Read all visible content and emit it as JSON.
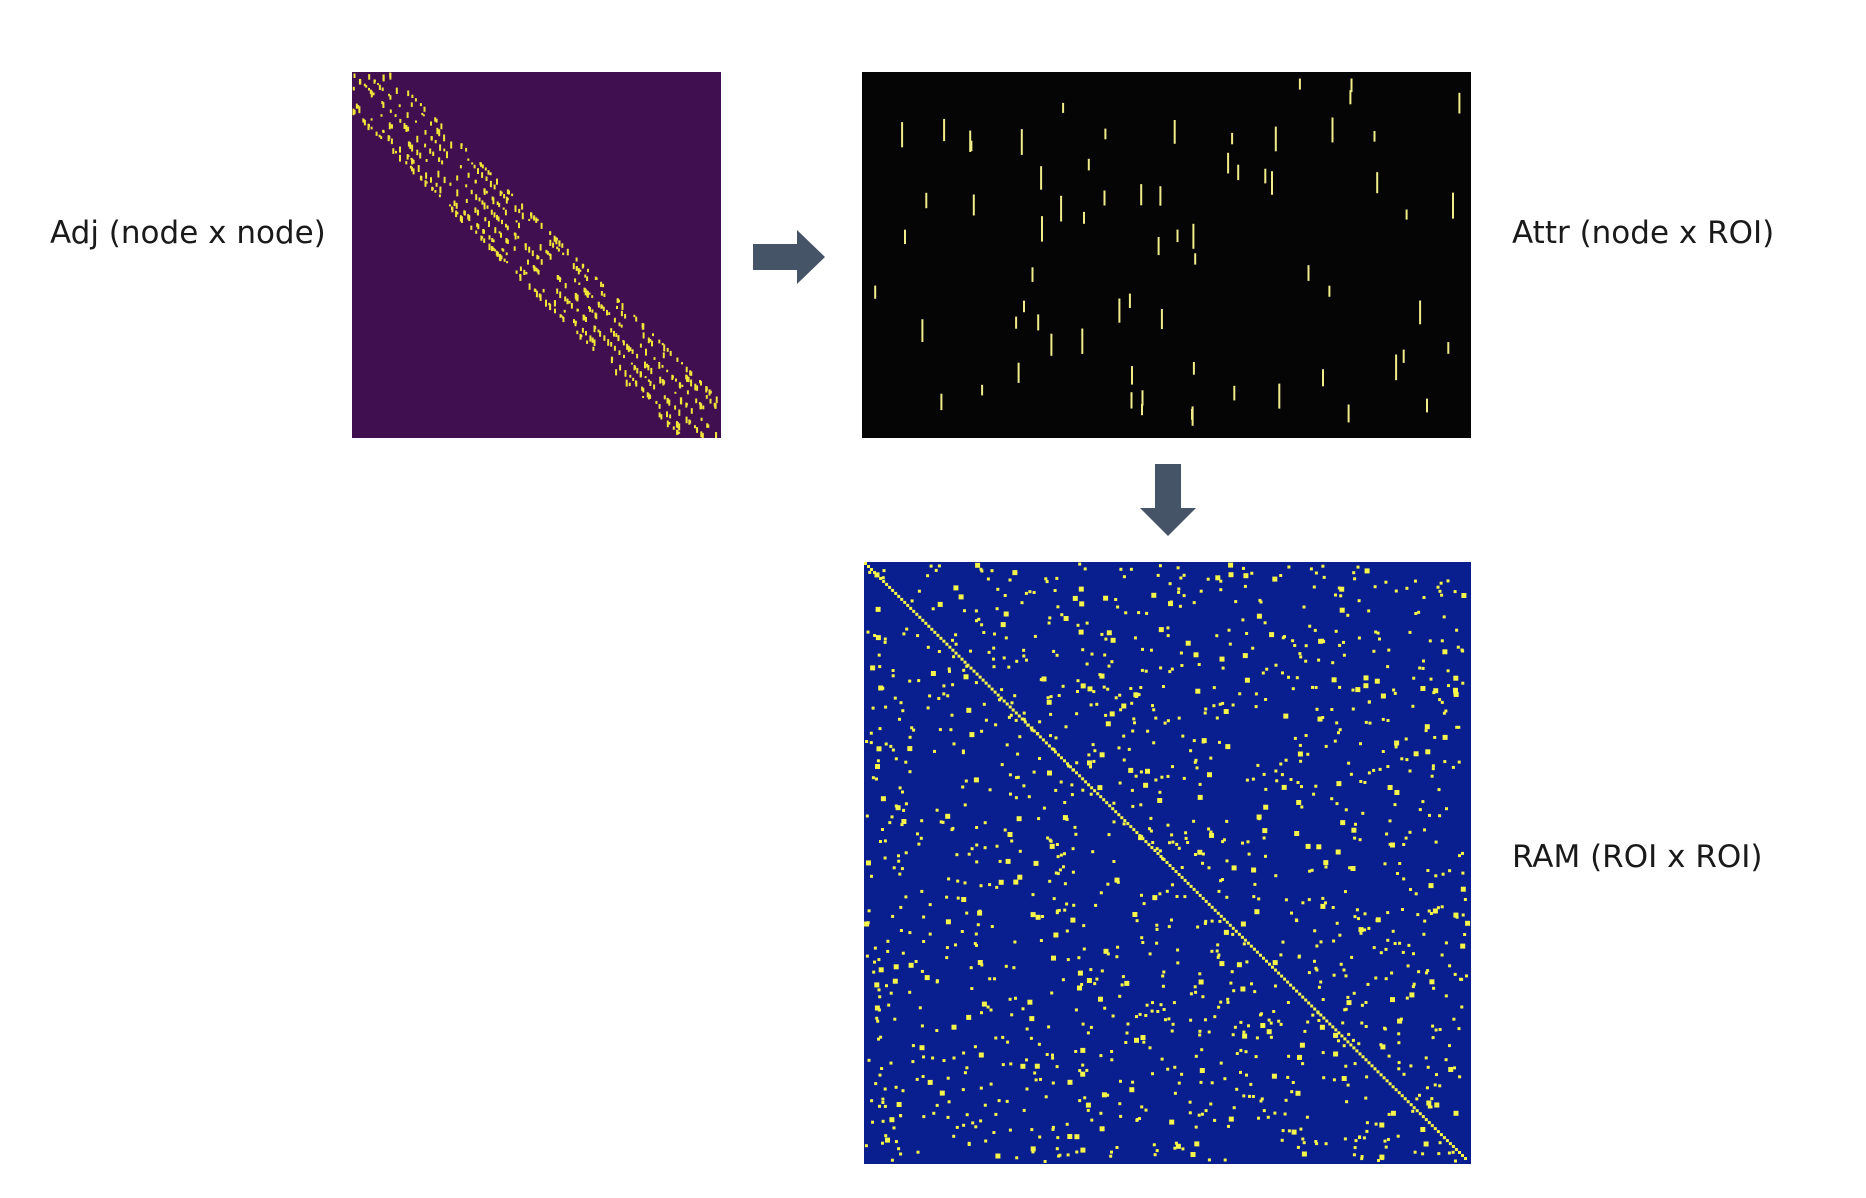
{
  "labels": {
    "adj": "Adj (node x node)",
    "attr": "Attr (node x ROI)",
    "ram": "RAM (ROI x ROI)"
  },
  "colors": {
    "adj_background": "#3f0f4f",
    "adj_marks": "#f2e53a",
    "attr_background": "#050505",
    "attr_marks": "#f0ec8a",
    "ram_background": "#0a1f8f",
    "ram_marks": "#f5f54a",
    "arrow": "#465468"
  },
  "icons": {
    "flow_right": "arrow-right-icon",
    "flow_down": "arrow-down-icon"
  }
}
